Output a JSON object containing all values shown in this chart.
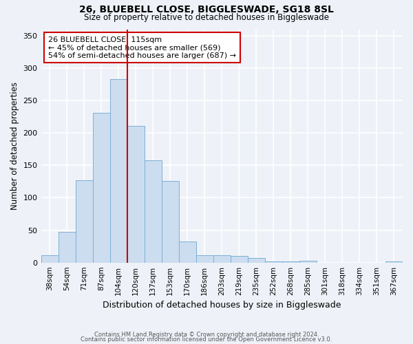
{
  "title": "26, BLUEBELL CLOSE, BIGGLESWADE, SG18 8SL",
  "subtitle": "Size of property relative to detached houses in Biggleswade",
  "xlabel": "Distribution of detached houses by size in Biggleswade",
  "ylabel": "Number of detached properties",
  "bar_labels": [
    "38sqm",
    "54sqm",
    "71sqm",
    "87sqm",
    "104sqm",
    "120sqm",
    "137sqm",
    "153sqm",
    "170sqm",
    "186sqm",
    "203sqm",
    "219sqm",
    "235sqm",
    "252sqm",
    "268sqm",
    "285sqm",
    "301sqm",
    "318sqm",
    "334sqm",
    "351sqm",
    "367sqm"
  ],
  "bar_values": [
    11,
    47,
    127,
    231,
    283,
    211,
    158,
    126,
    33,
    11,
    11,
    10,
    7,
    2,
    2,
    3,
    0,
    0,
    0,
    0,
    2
  ],
  "bar_color": "#ccddf0",
  "bar_edge_color": "#7bafd4",
  "vline_x": 4.5,
  "vline_color": "#cc0000",
  "annotation_title": "26 BLUEBELL CLOSE: 115sqm",
  "annotation_line1": "← 45% of detached houses are smaller (569)",
  "annotation_line2": "54% of semi-detached houses are larger (687) →",
  "annotation_box_color": "#ffffff",
  "annotation_box_edge": "#cc0000",
  "background_color": "#eef2f8",
  "grid_color": "#ffffff",
  "ylim": [
    0,
    360
  ],
  "yticks": [
    0,
    50,
    100,
    150,
    200,
    250,
    300,
    350
  ],
  "footer1": "Contains HM Land Registry data © Crown copyright and database right 2024.",
  "footer2": "Contains public sector information licensed under the Open Government Licence v3.0."
}
